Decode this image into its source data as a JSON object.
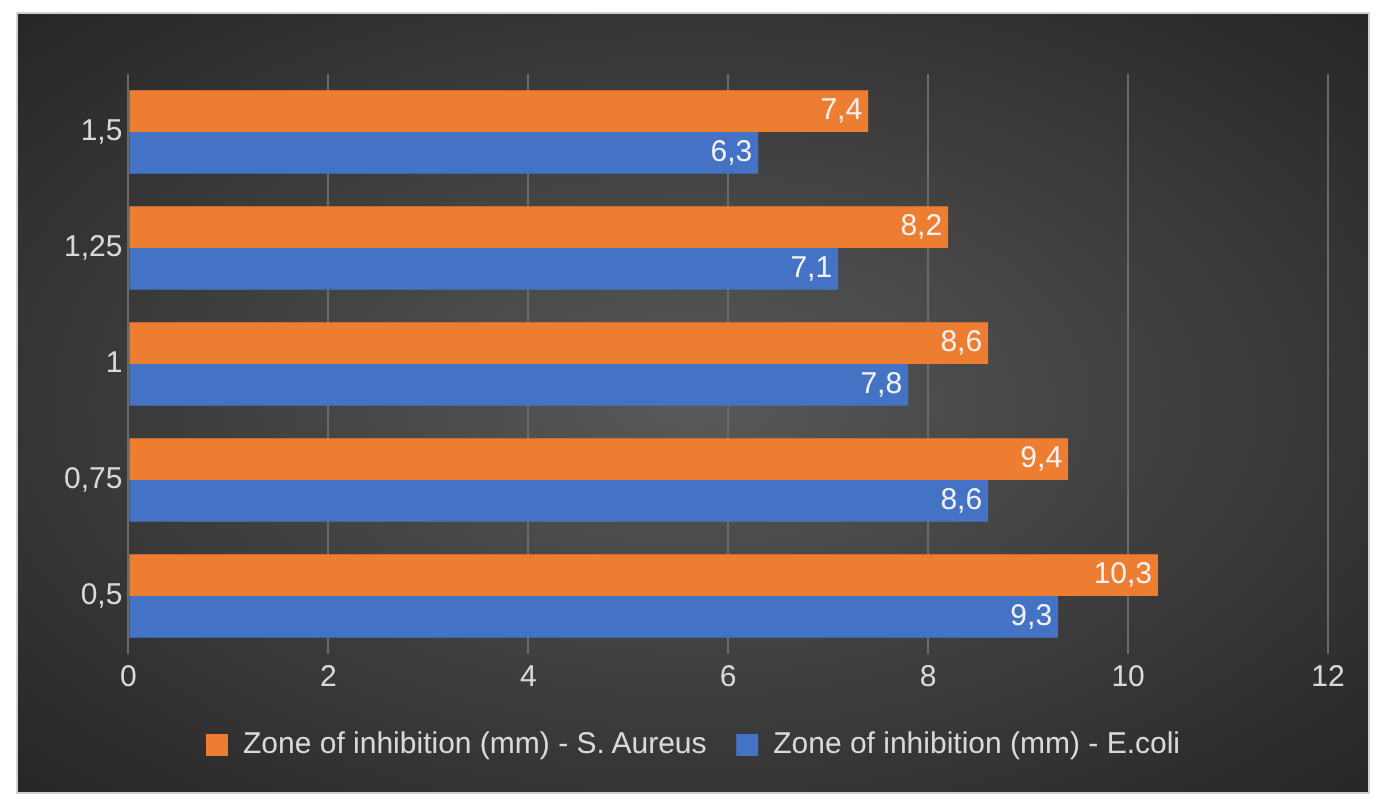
{
  "chart_data": {
    "type": "bar",
    "orientation": "horizontal",
    "categories": [
      "1,5",
      "1,25",
      "1",
      "0,75",
      "0,5"
    ],
    "series": [
      {
        "name": "Zone of inhibition (mm) - S. Aureus",
        "color": "#ed7d31",
        "values": [
          7.4,
          8.2,
          8.6,
          9.4,
          10.3
        ],
        "value_labels": [
          "7,4",
          "8,2",
          "8,6",
          "9,4",
          "10,3"
        ]
      },
      {
        "name": "Zone of inhibition (mm) - E.coli",
        "color": "#4472c4",
        "values": [
          6.3,
          7.1,
          7.8,
          8.6,
          9.3
        ],
        "value_labels": [
          "6,3",
          "7,1",
          "7,8",
          "8,6",
          "9,3"
        ]
      }
    ],
    "xlim": [
      0,
      12
    ],
    "xticks": [
      0,
      2,
      4,
      6,
      8,
      10,
      12
    ],
    "grid": "x",
    "legend": "bottom"
  }
}
